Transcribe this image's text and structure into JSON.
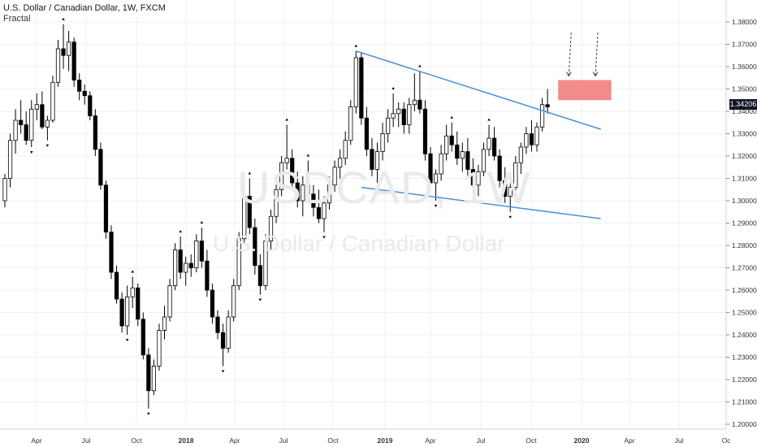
{
  "header": {
    "title": "U.S. Dollar / Canadian Dollar, 1W, FXCM",
    "indicator": "Fractal"
  },
  "watermark": {
    "symbol": "USDCAD, 1W",
    "name": "U.S. Dollar / Canadian Dollar"
  },
  "last_price": "1.34206",
  "colors": {
    "candle_up_fill": "#ffffff",
    "candle_down_fill": "#000000",
    "candle_border": "#000000",
    "trendline": "#4a8fdc",
    "zone": "#f28b8b",
    "grid": "#eef0f3",
    "axis_text": "#333333"
  },
  "chart_data": {
    "type": "candlestick",
    "timeframe": "1W",
    "y_axis": {
      "ticks": [
        "1.20000",
        "1.21000",
        "1.22000",
        "1.23000",
        "1.24000",
        "1.25000",
        "1.26000",
        "1.27000",
        "1.28000",
        "1.29000",
        "1.30000",
        "1.31000",
        "1.32000",
        "1.33000",
        "1.34000",
        "1.35000",
        "1.36000",
        "1.37000",
        "1.38000"
      ],
      "range": [
        1.1975,
        1.3865
      ]
    },
    "x_axis": {
      "labels": [
        "Apr",
        "Jul",
        "Oct",
        "2018",
        "Apr",
        "Jul",
        "Oct",
        "2019",
        "Apr",
        "Jul",
        "Oct",
        "2020",
        "Apr",
        "Jul",
        "Oc"
      ],
      "bold": [
        "2018",
        "2019",
        "2020"
      ]
    },
    "series": [
      {
        "values": [
          [
            1.3,
            1.312,
            1.297,
            1.31
          ],
          [
            1.31,
            1.33,
            1.306,
            1.327
          ],
          [
            1.327,
            1.341,
            1.321,
            1.336
          ],
          [
            1.336,
            1.345,
            1.33,
            1.334
          ],
          [
            1.334,
            1.34,
            1.325,
            1.327
          ],
          [
            1.327,
            1.345,
            1.324,
            1.341
          ],
          [
            1.341,
            1.348,
            1.336,
            1.343
          ],
          [
            1.343,
            1.349,
            1.332,
            1.333
          ],
          [
            1.333,
            1.338,
            1.327,
            1.336
          ],
          [
            1.336,
            1.356,
            1.335,
            1.353
          ],
          [
            1.353,
            1.372,
            1.351,
            1.368
          ],
          [
            1.368,
            1.379,
            1.359,
            1.365
          ],
          [
            1.365,
            1.376,
            1.358,
            1.371
          ],
          [
            1.371,
            1.373,
            1.351,
            1.354
          ],
          [
            1.354,
            1.357,
            1.345,
            1.349
          ],
          [
            1.349,
            1.352,
            1.343,
            1.347
          ],
          [
            1.347,
            1.349,
            1.336,
            1.338
          ],
          [
            1.338,
            1.341,
            1.32,
            1.323
          ],
          [
            1.323,
            1.326,
            1.305,
            1.307
          ],
          [
            1.307,
            1.309,
            1.283,
            1.286
          ],
          [
            1.286,
            1.289,
            1.265,
            1.268
          ],
          [
            1.268,
            1.271,
            1.254,
            1.256
          ],
          [
            1.256,
            1.259,
            1.241,
            1.244
          ],
          [
            1.244,
            1.262,
            1.24,
            1.257
          ],
          [
            1.257,
            1.266,
            1.252,
            1.261
          ],
          [
            1.261,
            1.263,
            1.244,
            1.247
          ],
          [
            1.247,
            1.25,
            1.229,
            1.231
          ],
          [
            1.231,
            1.234,
            1.207,
            1.215
          ],
          [
            1.215,
            1.229,
            1.213,
            1.226
          ],
          [
            1.226,
            1.245,
            1.224,
            1.242
          ],
          [
            1.242,
            1.253,
            1.238,
            1.248
          ],
          [
            1.248,
            1.265,
            1.246,
            1.262
          ],
          [
            1.262,
            1.281,
            1.26,
            1.278
          ],
          [
            1.278,
            1.284,
            1.265,
            1.268
          ],
          [
            1.268,
            1.275,
            1.262,
            1.272
          ],
          [
            1.272,
            1.276,
            1.266,
            1.27
          ],
          [
            1.27,
            1.285,
            1.268,
            1.282
          ],
          [
            1.282,
            1.288,
            1.27,
            1.273
          ],
          [
            1.273,
            1.278,
            1.257,
            1.26
          ],
          [
            1.26,
            1.263,
            1.245,
            1.248
          ],
          [
            1.248,
            1.251,
            1.238,
            1.241
          ],
          [
            1.241,
            1.245,
            1.226,
            1.234
          ],
          [
            1.234,
            1.251,
            1.232,
            1.248
          ],
          [
            1.248,
            1.265,
            1.246,
            1.262
          ],
          [
            1.262,
            1.286,
            1.26,
            1.283
          ],
          [
            1.283,
            1.305,
            1.281,
            1.302
          ],
          [
            1.302,
            1.31,
            1.285,
            1.288
          ],
          [
            1.288,
            1.292,
            1.267,
            1.271
          ],
          [
            1.271,
            1.276,
            1.258,
            1.262
          ],
          [
            1.262,
            1.285,
            1.26,
            1.282
          ],
          [
            1.282,
            1.296,
            1.278,
            1.293
          ],
          [
            1.293,
            1.308,
            1.29,
            1.305
          ],
          [
            1.305,
            1.32,
            1.302,
            1.317
          ],
          [
            1.317,
            1.334,
            1.314,
            1.319
          ],
          [
            1.319,
            1.323,
            1.306,
            1.308
          ],
          [
            1.308,
            1.313,
            1.297,
            1.3
          ],
          [
            1.3,
            1.311,
            1.293,
            1.307
          ],
          [
            1.307,
            1.318,
            1.3,
            1.303
          ],
          [
            1.303,
            1.307,
            1.293,
            1.297
          ],
          [
            1.297,
            1.305,
            1.29,
            1.292
          ],
          [
            1.292,
            1.302,
            1.286,
            1.299
          ],
          [
            1.299,
            1.311,
            1.296,
            1.307
          ],
          [
            1.307,
            1.318,
            1.304,
            1.315
          ],
          [
            1.315,
            1.323,
            1.309,
            1.319
          ],
          [
            1.319,
            1.331,
            1.316,
            1.327
          ],
          [
            1.327,
            1.345,
            1.325,
            1.342
          ],
          [
            1.342,
            1.367,
            1.339,
            1.364
          ],
          [
            1.364,
            1.366,
            1.334,
            1.337
          ],
          [
            1.337,
            1.342,
            1.32,
            1.323
          ],
          [
            1.323,
            1.328,
            1.311,
            1.314
          ],
          [
            1.314,
            1.326,
            1.308,
            1.322
          ],
          [
            1.322,
            1.335,
            1.318,
            1.33
          ],
          [
            1.33,
            1.341,
            1.326,
            1.337
          ],
          [
            1.337,
            1.348,
            1.333,
            1.339
          ],
          [
            1.339,
            1.344,
            1.333,
            1.341
          ],
          [
            1.341,
            1.344,
            1.33,
            1.334
          ],
          [
            1.334,
            1.346,
            1.33,
            1.343
          ],
          [
            1.343,
            1.357,
            1.34,
            1.345
          ],
          [
            1.345,
            1.358,
            1.339,
            1.341
          ],
          [
            1.341,
            1.345,
            1.318,
            1.321
          ],
          [
            1.321,
            1.324,
            1.305,
            1.308
          ],
          [
            1.308,
            1.314,
            1.3,
            1.312
          ],
          [
            1.312,
            1.325,
            1.309,
            1.321
          ],
          [
            1.321,
            1.334,
            1.318,
            1.329
          ],
          [
            1.329,
            1.335,
            1.322,
            1.325
          ],
          [
            1.325,
            1.331,
            1.316,
            1.319
          ],
          [
            1.319,
            1.326,
            1.313,
            1.322
          ],
          [
            1.322,
            1.328,
            1.311,
            1.314
          ],
          [
            1.314,
            1.319,
            1.303,
            1.307
          ],
          [
            1.307,
            1.316,
            1.302,
            1.313
          ],
          [
            1.313,
            1.326,
            1.311,
            1.323
          ],
          [
            1.323,
            1.334,
            1.32,
            1.328
          ],
          [
            1.328,
            1.333,
            1.318,
            1.32
          ],
          [
            1.32,
            1.323,
            1.306,
            1.309
          ],
          [
            1.309,
            1.315,
            1.299,
            1.302
          ],
          [
            1.302,
            1.308,
            1.295,
            1.306
          ],
          [
            1.306,
            1.32,
            1.303,
            1.317
          ],
          [
            1.317,
            1.326,
            1.312,
            1.324
          ],
          [
            1.324,
            1.333,
            1.321,
            1.33
          ],
          [
            1.33,
            1.336,
            1.322,
            1.325
          ],
          [
            1.325,
            1.335,
            1.322,
            1.333
          ],
          [
            1.333,
            1.346,
            1.331,
            1.343
          ],
          [
            1.343,
            1.35,
            1.339,
            1.342
          ]
        ]
      }
    ],
    "annotations": {
      "trendlines": [
        {
          "from": {
            "bar": 66,
            "price": 1.367
          },
          "to": {
            "bar": 112,
            "price": 1.332
          }
        },
        {
          "from": {
            "bar": 67,
            "price": 1.306
          },
          "to": {
            "bar": 112,
            "price": 1.292
          }
        }
      ],
      "zone": {
        "from_bar": 104,
        "to_bar": 114,
        "top": 1.354,
        "bottom": 1.345
      },
      "arrows": [
        {
          "bar": 106
        },
        {
          "bar": 111
        }
      ]
    }
  }
}
